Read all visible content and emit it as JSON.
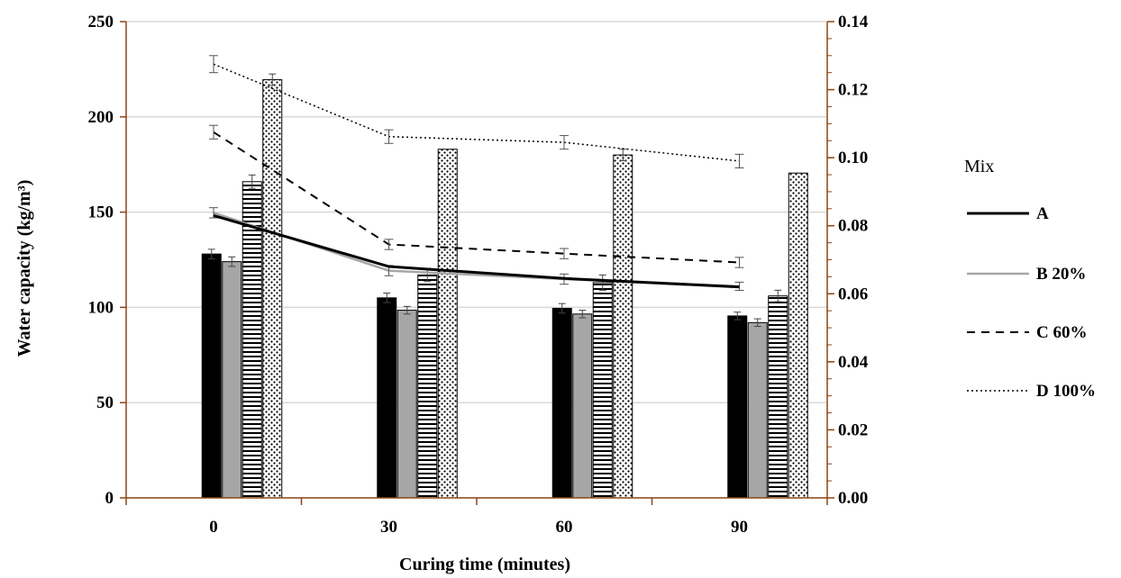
{
  "chart_data": {
    "type": "bar",
    "categories": [
      "0",
      "30",
      "60",
      "90"
    ],
    "xlabel": "Curing time (minutes)",
    "ylabel": "Water capacity  (kg/m³)",
    "ylim": [
      0,
      250
    ],
    "yticks": [
      "0",
      "50",
      "100",
      "150",
      "200",
      "250"
    ],
    "y2lim": [
      0,
      0.14
    ],
    "y2ticks": [
      "0.00",
      "0.02",
      "0.04",
      "0.06",
      "0.08",
      "0.10",
      "0.12",
      "0.14"
    ],
    "grid": true,
    "legend_title": "Mix",
    "legend_position": "right",
    "colors": {
      "axis": "#8B4513",
      "grid": "#d9d9d9",
      "A": "#000000",
      "B": "#a6a6a6",
      "C": "#000000",
      "D": "#000000"
    },
    "bar_series": [
      {
        "name": "A",
        "pattern": "solid-black",
        "values": [
          128,
          105,
          99.5,
          95.5
        ],
        "errors": [
          2.5,
          2.5,
          2.5,
          2
        ]
      },
      {
        "name": "B 20%",
        "pattern": "solid-gray",
        "values": [
          124,
          98.5,
          96.5,
          92
        ],
        "errors": [
          2.5,
          2,
          2,
          2
        ]
      },
      {
        "name": "C 60%",
        "pattern": "horizontal-lines",
        "values": [
          166,
          117,
          113,
          106
        ],
        "errors": [
          3.5,
          3.5,
          4,
          3
        ]
      },
      {
        "name": "D 100%",
        "pattern": "dots",
        "values": [
          219.5,
          183,
          180,
          170.5
        ],
        "errors": [
          3,
          0,
          3,
          0
        ]
      }
    ],
    "line_series": [
      {
        "name": "A",
        "style": "solid-black",
        "axis": "secondary",
        "values": [
          0.083,
          0.068,
          0.0645,
          0.062
        ],
        "errors": [
          0,
          0,
          0,
          0
        ]
      },
      {
        "name": "B 20%",
        "style": "solid-gray",
        "axis": "secondary",
        "values": [
          0.0838,
          0.0668,
          0.0643,
          0.0622
        ],
        "errors": [
          0.0015,
          0.0015,
          0.0015,
          0.0012
        ]
      },
      {
        "name": "C 60%",
        "style": "dashed",
        "axis": "secondary",
        "values": [
          0.1075,
          0.0745,
          0.0718,
          0.0692
        ],
        "errors": [
          0.002,
          0.0015,
          0.0015,
          0.0015
        ]
      },
      {
        "name": "D 100%",
        "style": "dotted",
        "axis": "secondary",
        "values": [
          0.1275,
          0.1062,
          0.1045,
          0.099
        ],
        "errors": [
          0.0025,
          0.002,
          0.002,
          0.002
        ]
      }
    ]
  }
}
